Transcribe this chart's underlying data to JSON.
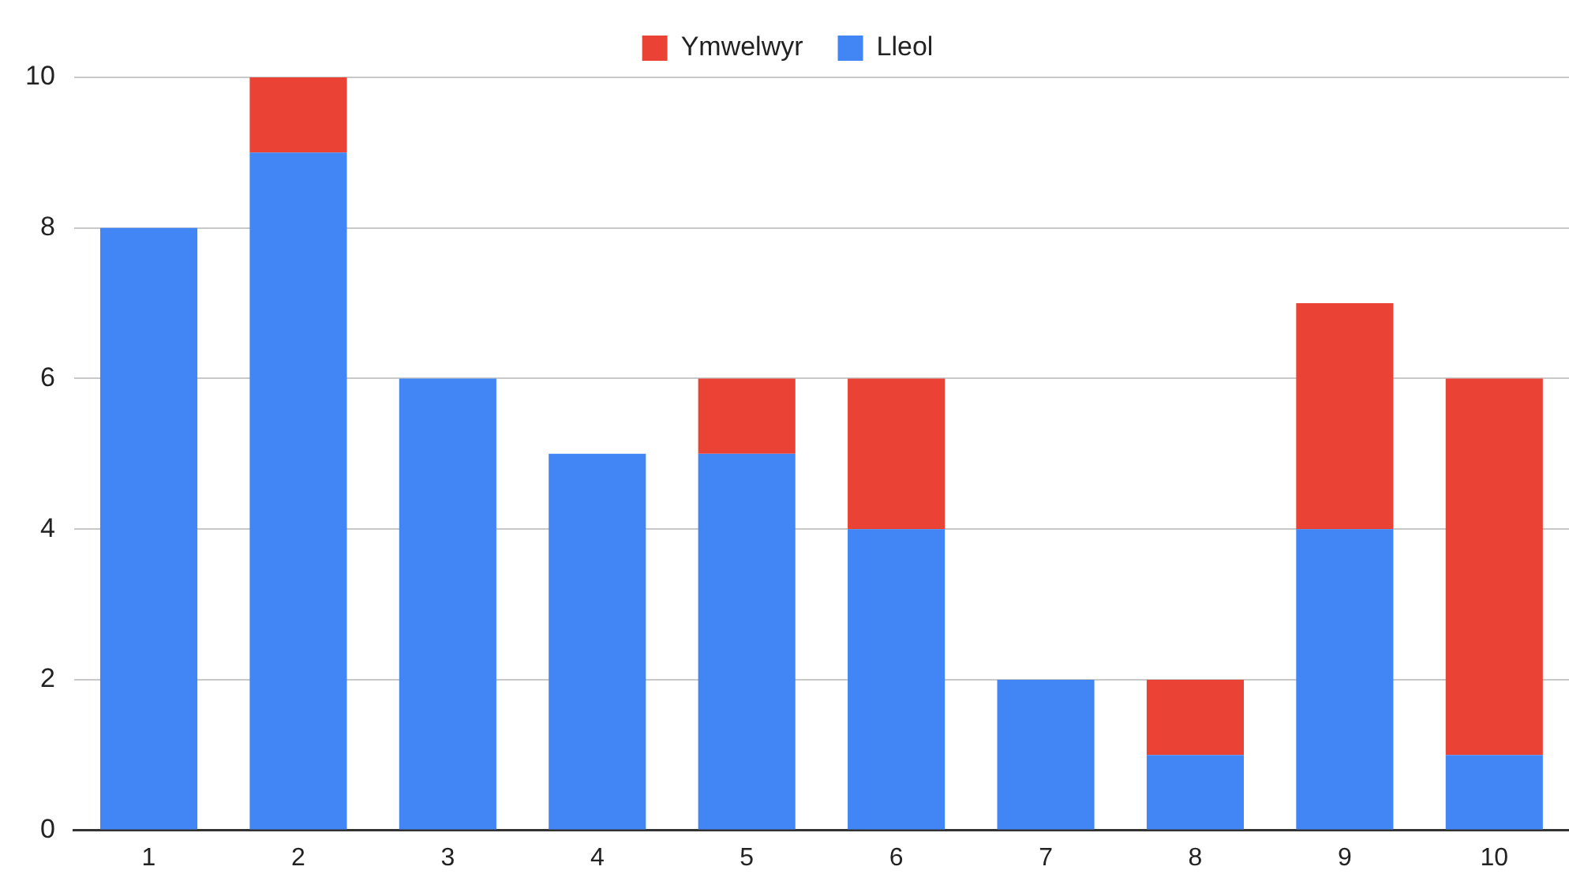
{
  "chart_data": {
    "type": "bar",
    "stacked": true,
    "categories": [
      "1",
      "2",
      "3",
      "4",
      "5",
      "6",
      "7",
      "8",
      "9",
      "10"
    ],
    "series": [
      {
        "name": "Lleol",
        "color": "#4285f4",
        "values": [
          8,
          9,
          6,
          5,
          5,
          4,
          2,
          1,
          4,
          1
        ]
      },
      {
        "name": "Ymwelwyr",
        "color": "#ea4335",
        "values": [
          0,
          1,
          0,
          0,
          1,
          2,
          0,
          1,
          3,
          5
        ]
      }
    ],
    "ylim": [
      0,
      10
    ],
    "yticks": [
      0,
      2,
      4,
      6,
      8,
      10
    ],
    "grid": "y",
    "legend": "top"
  }
}
